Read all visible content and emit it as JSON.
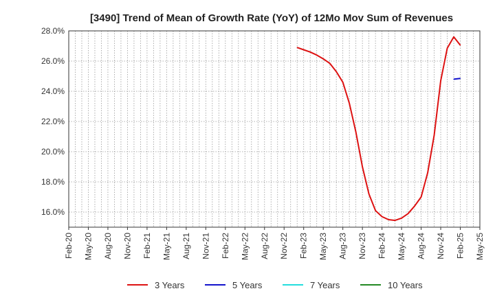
{
  "chart_data": {
    "type": "line",
    "title": "[3490]  Trend of Mean of Growth Rate (YoY) of 12Mo Mov Sum of Revenues",
    "xlabel": "",
    "ylabel": "",
    "ylim": [
      15.0,
      28.0
    ],
    "y_ticks": [
      16.0,
      18.0,
      20.0,
      22.0,
      24.0,
      26.0,
      28.0
    ],
    "y_tick_labels": [
      "16.0%",
      "18.0%",
      "20.0%",
      "22.0%",
      "24.0%",
      "26.0%",
      "28.0%"
    ],
    "x_tick_labels": [
      "Feb-20",
      "May-20",
      "Aug-20",
      "Nov-20",
      "Feb-21",
      "May-21",
      "Aug-21",
      "Nov-21",
      "Feb-22",
      "May-22",
      "Aug-22",
      "Nov-22",
      "Feb-23",
      "May-23",
      "Aug-23",
      "Nov-23",
      "Feb-24",
      "May-24",
      "Aug-24",
      "Nov-24",
      "Feb-25",
      "May-25"
    ],
    "grid": true,
    "legend_position": "bottom",
    "series": [
      {
        "name": "3 Years",
        "color": "#dd1111",
        "x": [
          "Jan-23",
          "Feb-23",
          "Mar-23",
          "Apr-23",
          "May-23",
          "Jun-23",
          "Jul-23",
          "Aug-23",
          "Sep-23",
          "Oct-23",
          "Nov-23",
          "Dec-23",
          "Jan-24",
          "Feb-24",
          "Mar-24",
          "Apr-24",
          "May-24",
          "Jun-24",
          "Jul-24",
          "Aug-24",
          "Sep-24",
          "Oct-24",
          "Nov-24",
          "Dec-24",
          "Jan-25",
          "Feb-25"
        ],
        "values": [
          26.9,
          26.75,
          26.6,
          26.4,
          26.15,
          25.85,
          25.3,
          24.6,
          23.2,
          21.3,
          19.0,
          17.2,
          16.1,
          15.7,
          15.5,
          15.45,
          15.6,
          15.9,
          16.4,
          17.0,
          18.6,
          21.1,
          24.7,
          26.85,
          27.6,
          27.05
        ]
      },
      {
        "name": "5 Years",
        "color": "#1111cc",
        "x": [
          "Jan-25",
          "Feb-25"
        ],
        "values": [
          24.8,
          24.85
        ]
      },
      {
        "name": "7 Years",
        "color": "#22dddd",
        "x": [],
        "values": []
      },
      {
        "name": "10 Years",
        "color": "#228822",
        "x": [],
        "values": []
      }
    ]
  }
}
